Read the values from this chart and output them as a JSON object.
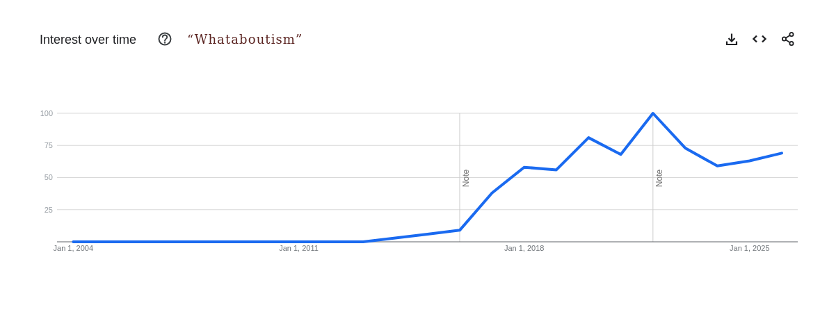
{
  "chart_data": {
    "type": "line",
    "title": "Interest over time",
    "subtitle": "“Whataboutism”",
    "x": [
      "2004",
      "2005",
      "2006",
      "2007",
      "2008",
      "2009",
      "2010",
      "2011",
      "2012",
      "2013",
      "2014",
      "2015",
      "2016",
      "2017",
      "2018",
      "2019",
      "2020",
      "2021",
      "2022",
      "2023",
      "2024",
      "2025",
      "2026"
    ],
    "series": [
      {
        "color": "#1a6af0",
        "values": [
          0,
          0,
          0,
          0,
          0,
          0,
          0,
          0,
          0,
          0,
          3,
          6,
          9,
          38,
          58,
          56,
          81,
          68,
          100,
          73,
          59,
          63,
          69
        ]
      }
    ],
    "xlim": [
      "2003-07",
      "2026-07"
    ],
    "xticks": [
      {
        "value": "2004-01-01",
        "label": "Jan 1, 2004"
      },
      {
        "value": "2011-01-01",
        "label": "Jan 1, 2011"
      },
      {
        "value": "2018-01-01",
        "label": "Jan 1, 2018"
      },
      {
        "value": "2025-01-01",
        "label": "Jan 1, 2025"
      }
    ],
    "ylim": [
      0,
      100
    ],
    "yticks": [
      25,
      50,
      75,
      100
    ],
    "grid": "y",
    "ref_lines": [
      {
        "axis": "x",
        "value": "2016",
        "label": "Note",
        "color": "#cccccc"
      },
      {
        "axis": "x",
        "value": "2022",
        "label": "Note",
        "color": "#cccccc"
      }
    ]
  }
}
